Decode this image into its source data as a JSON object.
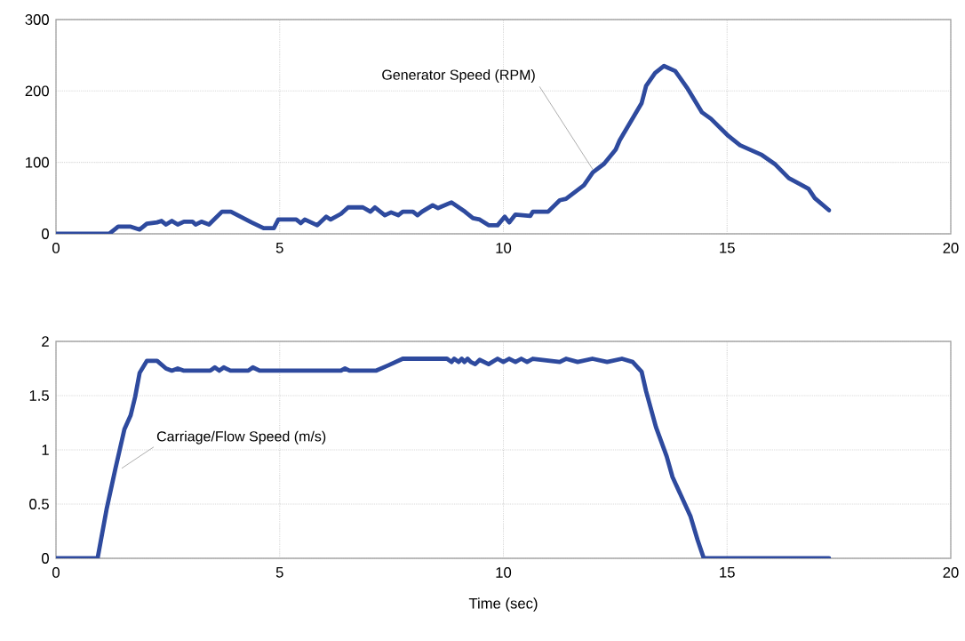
{
  "chart_data": [
    {
      "type": "line",
      "xlim": [
        0,
        20
      ],
      "ylim": [
        0,
        300
      ],
      "xticks": [
        0,
        5,
        10,
        15,
        20
      ],
      "yticks": [
        0,
        100,
        200,
        300
      ],
      "grid": true,
      "line_style": "solid",
      "annotations": [
        {
          "text": "Generator Speed (RPM)",
          "x": 12.0,
          "y": 90
        }
      ],
      "series": [
        {
          "color": "#2e4a9e",
          "x": [
            0,
            1.19,
            1.39,
            1.67,
            1.87,
            2.03,
            2.26,
            2.36,
            2.46,
            2.59,
            2.72,
            2.86,
            3.05,
            3.12,
            3.25,
            3.42,
            3.71,
            3.91,
            4.37,
            4.64,
            4.87,
            4.97,
            5.37,
            5.47,
            5.56,
            5.84,
            6.04,
            6.14,
            6.37,
            6.53,
            6.86,
            7.03,
            7.13,
            7.35,
            7.49,
            7.65,
            7.75,
            7.98,
            8.08,
            8.18,
            8.42,
            8.54,
            8.84,
            9.14,
            9.32,
            9.47,
            9.67,
            9.87,
            10.03,
            10.13,
            10.27,
            10.6,
            10.66,
            11.0,
            11.26,
            11.4,
            11.8,
            12.0,
            12.25,
            12.51,
            12.6,
            13.09,
            13.19,
            13.39,
            13.59,
            13.84,
            14.1,
            14.44,
            14.64,
            15.03,
            15.29,
            15.76,
            16.08,
            16.38,
            16.62,
            16.82,
            16.96,
            17.28
          ],
          "values": [
            0,
            0,
            10,
            10,
            6,
            14,
            16,
            18,
            13,
            18,
            13,
            17,
            17,
            13,
            17,
            13,
            31,
            31,
            16,
            8,
            8,
            20,
            20,
            15,
            20,
            12,
            24,
            20,
            28,
            37,
            37,
            31,
            37,
            26,
            30,
            26,
            31,
            31,
            26,
            31,
            40,
            36,
            44,
            31,
            22,
            20,
            12,
            12,
            24,
            16,
            27,
            25,
            31,
            31,
            47,
            49,
            68,
            86,
            98,
            118,
            131,
            183,
            207,
            225,
            235,
            228,
            205,
            170,
            161,
            137,
            124,
            111,
            97,
            78,
            70,
            63,
            50,
            33
          ]
        }
      ]
    },
    {
      "type": "line",
      "xlim": [
        0,
        20
      ],
      "ylim": [
        0,
        2
      ],
      "xticks": [
        0,
        5,
        10,
        15,
        20
      ],
      "yticks": [
        0,
        0.5,
        1,
        1.5,
        2
      ],
      "grid": true,
      "line_style": "solid",
      "xlabel": "Time (sec)",
      "annotations": [
        {
          "text": "Carriage/Flow Speed (m/s)",
          "x": 1.47,
          "y": 0.83
        }
      ],
      "series": [
        {
          "color": "#2e4a9e",
          "x": [
            0,
            0.93,
            1.13,
            1.33,
            1.53,
            1.67,
            1.77,
            1.87,
            2.03,
            2.26,
            2.46,
            2.59,
            2.72,
            2.86,
            3.45,
            3.55,
            3.65,
            3.75,
            3.9,
            4.3,
            4.4,
            4.55,
            6.37,
            6.46,
            6.56,
            7.15,
            7.43,
            7.75,
            8.74,
            8.84,
            8.9,
            9.0,
            9.07,
            9.13,
            9.2,
            9.27,
            9.37,
            9.47,
            9.67,
            9.87,
            10.0,
            10.13,
            10.27,
            10.4,
            10.53,
            10.66,
            11.26,
            11.4,
            11.66,
            11.99,
            12.32,
            12.65,
            12.89,
            13.09,
            13.19,
            13.41,
            13.65,
            13.78,
            14.18,
            14.34,
            14.48,
            17.28
          ],
          "values": [
            0,
            0,
            0.45,
            0.83,
            1.19,
            1.32,
            1.49,
            1.71,
            1.82,
            1.82,
            1.75,
            1.73,
            1.75,
            1.73,
            1.73,
            1.76,
            1.73,
            1.76,
            1.73,
            1.73,
            1.76,
            1.73,
            1.73,
            1.75,
            1.73,
            1.73,
            1.78,
            1.84,
            1.84,
            1.81,
            1.84,
            1.81,
            1.84,
            1.81,
            1.84,
            1.81,
            1.79,
            1.83,
            1.79,
            1.84,
            1.81,
            1.84,
            1.81,
            1.84,
            1.81,
            1.84,
            1.81,
            1.84,
            1.81,
            1.84,
            1.81,
            1.84,
            1.81,
            1.72,
            1.54,
            1.21,
            0.94,
            0.75,
            0.39,
            0.17,
            0,
            0
          ]
        }
      ]
    }
  ]
}
